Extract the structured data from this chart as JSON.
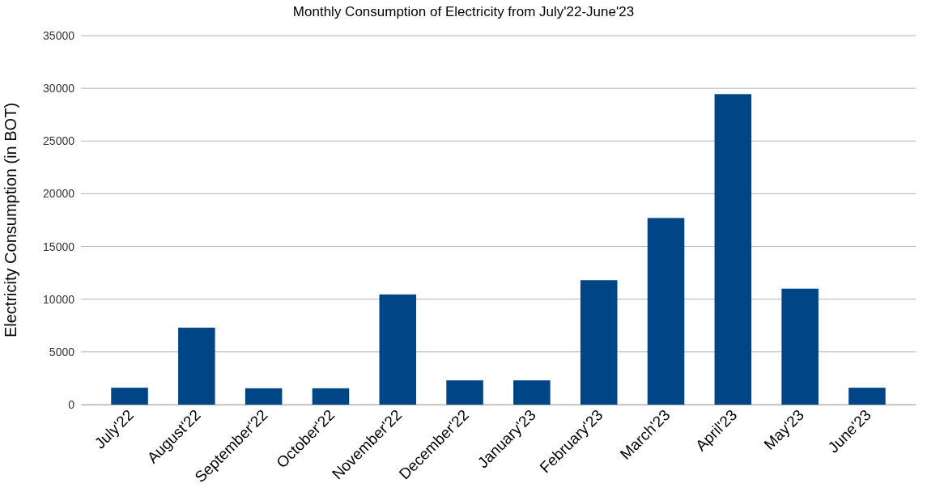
{
  "chart_data": {
    "type": "bar",
    "title": "Monthly Consumption of Electricity from July'22-June'23",
    "ylabel": "Electricity Consumption (in BOT)",
    "categories": [
      "July'22",
      "August'22",
      "September'22",
      "October'22",
      "November'22",
      "December'22",
      "January'23",
      "February'23",
      "March'23",
      "April'23",
      "May'23",
      "June'23"
    ],
    "values": [
      1600,
      7300,
      1550,
      1550,
      10450,
      2300,
      2300,
      11800,
      17700,
      29450,
      11000,
      1600
    ],
    "color": "#004586",
    "ylim": [
      0,
      35000
    ],
    "yticks": [
      0,
      5000,
      10000,
      15000,
      20000,
      25000,
      30000,
      35000
    ],
    "grid": "y"
  }
}
